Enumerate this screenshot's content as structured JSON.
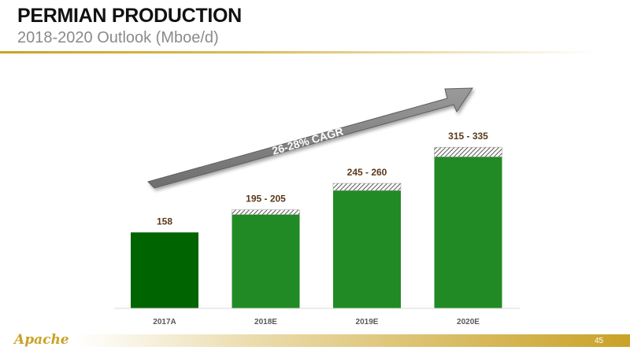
{
  "header": {
    "title": "PERMIAN PRODUCTION",
    "subtitle": "2018-2020 Outlook (Mboe/d)"
  },
  "footer": {
    "logo_text": "Apache",
    "page_number": "45"
  },
  "colors": {
    "actual_bar": "#006400",
    "estimate_bar": "#218a24",
    "range_hatch": "#555555",
    "arrow": "#808080",
    "accent_gold": "#c9a227",
    "value_label": "#5a3a1a"
  },
  "chart_data": {
    "type": "bar",
    "categories": [
      "2017A",
      "2018E",
      "2019E",
      "2020E"
    ],
    "values_low": [
      158,
      195,
      245,
      315
    ],
    "values_high": [
      158,
      205,
      260,
      335
    ],
    "data_labels": [
      "158",
      "195 - 205",
      "245 - 260",
      "315 - 335"
    ],
    "ylim": [
      0,
      360
    ],
    "annotation": "26-28% CAGR",
    "grid": false,
    "legend": "none"
  }
}
